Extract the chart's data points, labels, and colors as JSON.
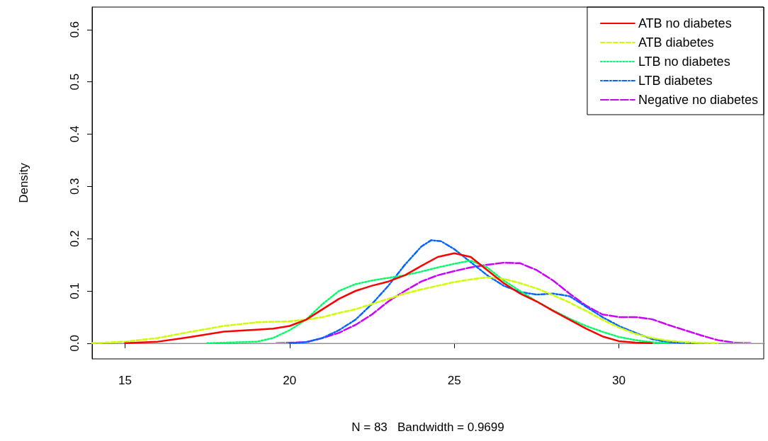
{
  "chart_data": {
    "type": "line",
    "xlabel": "N = 83   Bandwidth = 0.9699",
    "ylabel": "Density",
    "xlim": [
      14,
      34.4
    ],
    "xticks": [
      15,
      20,
      25,
      30
    ],
    "ylim": [
      -0.03,
      0.643
    ],
    "yticks": [
      {
        "value": 0,
        "label": "0.0"
      },
      0.1,
      0.2,
      0.3,
      0.4,
      0.5,
      0.6
    ],
    "grid": false,
    "legend": "top right",
    "marker": "none",
    "ref_lines": [
      {
        "axis": "y",
        "value": 0,
        "label": null,
        "color": "#bebebe"
      }
    ],
    "series": [
      {
        "name": "ATB no diabetes",
        "color": "#ff0000",
        "line_style": "solid",
        "x": [
          15,
          16,
          17,
          18,
          19,
          19.5,
          20,
          20.5,
          21,
          21.5,
          22,
          22.5,
          23,
          23.5,
          24,
          24.5,
          25,
          25.5,
          26,
          26.5,
          27,
          27.5,
          28,
          28.5,
          29,
          29.5,
          30,
          30.5,
          31
        ],
        "values": [
          0,
          0.003,
          0.012,
          0.022,
          0.026,
          0.028,
          0.033,
          0.045,
          0.065,
          0.085,
          0.1,
          0.11,
          0.118,
          0.13,
          0.148,
          0.165,
          0.172,
          0.165,
          0.14,
          0.115,
          0.095,
          0.08,
          0.062,
          0.045,
          0.028,
          0.013,
          0.004,
          0.001,
          0
        ]
      },
      {
        "name": "ATB diabetes",
        "color": "#ccff00",
        "line_style": "dashed",
        "x": [
          14,
          15,
          16,
          17,
          18,
          19,
          20,
          20.5,
          21,
          21.5,
          22,
          22.5,
          23,
          23.5,
          24,
          24.5,
          25,
          25.5,
          26,
          26.5,
          27,
          27.5,
          28,
          28.5,
          29,
          29.5,
          30,
          30.5,
          31,
          31.5,
          32,
          33
        ],
        "values": [
          0,
          0.003,
          0.01,
          0.022,
          0.033,
          0.04,
          0.042,
          0.045,
          0.05,
          0.058,
          0.065,
          0.075,
          0.085,
          0.095,
          0.103,
          0.11,
          0.117,
          0.122,
          0.126,
          0.123,
          0.115,
          0.105,
          0.092,
          0.078,
          0.062,
          0.045,
          0.03,
          0.018,
          0.01,
          0.005,
          0.002,
          0
        ]
      },
      {
        "name": "LTB no diabetes",
        "color": "#00ff66",
        "line_style": "dotted",
        "x": [
          17.5,
          19,
          19.5,
          20,
          20.5,
          21,
          21.5,
          22,
          22.5,
          23,
          23.5,
          24,
          24.5,
          25,
          25.5,
          26,
          26.5,
          27,
          27.5,
          28,
          28.5,
          29,
          29.5,
          30,
          30.5,
          31,
          31.5
        ],
        "values": [
          0,
          0.003,
          0.01,
          0.025,
          0.045,
          0.075,
          0.1,
          0.113,
          0.12,
          0.125,
          0.13,
          0.137,
          0.145,
          0.152,
          0.158,
          0.145,
          0.12,
          0.1,
          0.08,
          0.063,
          0.047,
          0.033,
          0.022,
          0.012,
          0.006,
          0.002,
          0
        ]
      },
      {
        "name": "LTB diabetes",
        "color": "#0066ff",
        "line_style": "dashdot",
        "x": [
          20,
          20.5,
          21,
          21.5,
          22,
          22.5,
          23,
          23.5,
          24,
          24.3,
          24.6,
          25,
          25.5,
          26,
          26.5,
          27,
          27.5,
          28,
          28.5,
          29,
          29.5,
          30,
          30.5,
          31,
          31.5,
          32.3
        ],
        "values": [
          0,
          0.002,
          0.01,
          0.025,
          0.045,
          0.075,
          0.11,
          0.15,
          0.185,
          0.197,
          0.195,
          0.18,
          0.155,
          0.13,
          0.11,
          0.098,
          0.093,
          0.095,
          0.09,
          0.07,
          0.05,
          0.033,
          0.02,
          0.008,
          0.002,
          0
        ]
      },
      {
        "name": "Negative no diabetes",
        "color": "#cc00ff",
        "line_style": "longdash",
        "x": [
          19.6,
          20.5,
          21,
          21.5,
          22,
          22.5,
          23,
          23.5,
          24,
          24.5,
          25,
          25.5,
          26,
          26.5,
          27,
          27.5,
          28,
          28.5,
          29,
          29.5,
          30,
          30.5,
          31,
          31.5,
          32,
          32.5,
          33,
          33.5,
          34
        ],
        "values": [
          0,
          0.002,
          0.01,
          0.02,
          0.035,
          0.055,
          0.08,
          0.1,
          0.118,
          0.13,
          0.138,
          0.145,
          0.15,
          0.154,
          0.153,
          0.14,
          0.12,
          0.095,
          0.072,
          0.055,
          0.05,
          0.05,
          0.046,
          0.035,
          0.025,
          0.015,
          0.006,
          0.001,
          0
        ]
      }
    ]
  }
}
